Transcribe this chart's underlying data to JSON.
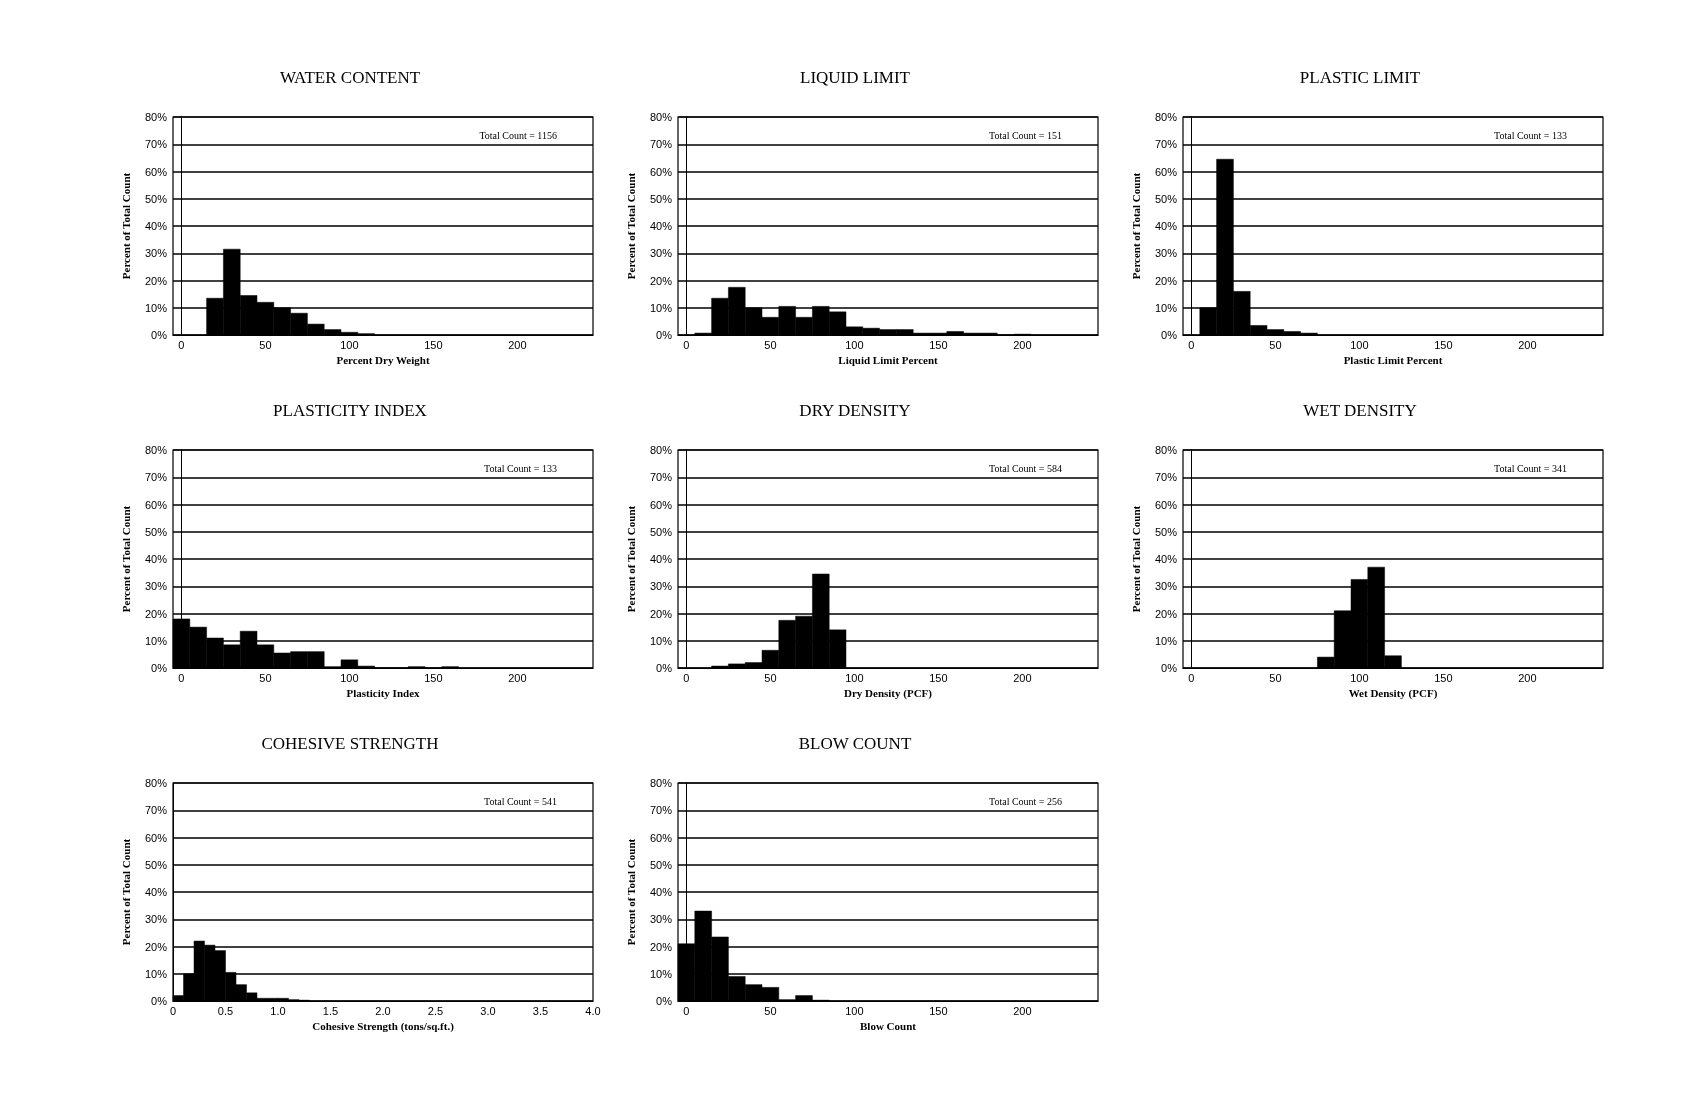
{
  "chart_data": [
    {
      "type": "histogram",
      "title": "WATER CONTENT",
      "xlabel": "Percent Dry Weight",
      "ylabel": "Percent of Total Count",
      "annotations": [
        "Total Count = 1156"
      ],
      "bins": [
        15,
        25,
        35,
        45,
        55,
        65,
        75,
        85,
        95,
        105,
        115
      ],
      "values": [
        13.5,
        31.5,
        14.5,
        12,
        10,
        8,
        4,
        2,
        1,
        0.5
      ],
      "color": "#000000",
      "xlim": [
        -5,
        245
      ],
      "xticks": [
        0,
        50,
        100,
        150,
        200
      ],
      "ylim": [
        0,
        80
      ],
      "yticks": [
        {
          "value": 0,
          "label": "0%"
        },
        {
          "value": 10,
          "label": "10%"
        },
        {
          "value": 20,
          "label": "20%"
        },
        {
          "value": 30,
          "label": "30%"
        },
        {
          "value": 40,
          "label": "40%"
        },
        {
          "value": 50,
          "label": "50%"
        },
        {
          "value": 60,
          "label": "60%"
        },
        {
          "value": 70,
          "label": "70%"
        },
        {
          "value": 80,
          "label": "80%"
        }
      ],
      "grid": "y"
    },
    {
      "type": "histogram",
      "title": "LIQUID LIMIT",
      "xlabel": "Liquid Limit Percent",
      "ylabel": "Percent of Total Count",
      "annotations": [
        "Total Count = 151"
      ],
      "bins": [
        5,
        15,
        25,
        35,
        45,
        55,
        65,
        75,
        85,
        95,
        105,
        115,
        125,
        135,
        145,
        155,
        165,
        175,
        185,
        195,
        205
      ],
      "values": [
        0.7,
        13.5,
        17.5,
        10,
        6.5,
        10.5,
        6.5,
        10.5,
        8.5,
        3,
        2.5,
        2,
        2,
        0.7,
        0.7,
        1.3,
        0.7,
        0.7,
        0,
        0.3
      ],
      "color": "#000000",
      "xlim": [
        -5,
        245
      ],
      "xticks": [
        0,
        50,
        100,
        150,
        200
      ],
      "ylim": [
        0,
        80
      ],
      "yticks": [
        {
          "value": 0,
          "label": "0%"
        },
        {
          "value": 10,
          "label": "10%"
        },
        {
          "value": 20,
          "label": "20%"
        },
        {
          "value": 30,
          "label": "30%"
        },
        {
          "value": 40,
          "label": "40%"
        },
        {
          "value": 50,
          "label": "50%"
        },
        {
          "value": 60,
          "label": "60%"
        },
        {
          "value": 70,
          "label": "70%"
        },
        {
          "value": 80,
          "label": "80%"
        }
      ],
      "grid": "y"
    },
    {
      "type": "histogram",
      "title": "PLASTIC LIMIT",
      "xlabel": "Plastic Limit Percent",
      "ylabel": "Percent of Total Count",
      "annotations": [
        "Total Count = 133"
      ],
      "bins": [
        5,
        15,
        25,
        35,
        45,
        55,
        65,
        75
      ],
      "values": [
        10,
        64.5,
        16,
        3.5,
        2,
        1.3,
        0.7
      ],
      "color": "#000000",
      "xlim": [
        -5,
        245
      ],
      "xticks": [
        0,
        50,
        100,
        150,
        200
      ],
      "ylim": [
        0,
        80
      ],
      "yticks": [
        {
          "value": 0,
          "label": "0%"
        },
        {
          "value": 10,
          "label": "10%"
        },
        {
          "value": 20,
          "label": "20%"
        },
        {
          "value": 30,
          "label": "30%"
        },
        {
          "value": 40,
          "label": "40%"
        },
        {
          "value": 50,
          "label": "50%"
        },
        {
          "value": 60,
          "label": "60%"
        },
        {
          "value": 70,
          "label": "70%"
        },
        {
          "value": 80,
          "label": "80%"
        }
      ],
      "grid": "y"
    },
    {
      "type": "histogram",
      "title": "PLASTICITY INDEX",
      "xlabel": "Plasticity Index",
      "ylabel": "Percent of Total Count",
      "annotations": [
        "Total Count = 133"
      ],
      "bins": [
        -5,
        5,
        15,
        25,
        35,
        45,
        55,
        65,
        75,
        85,
        95,
        105,
        115,
        125,
        135,
        145,
        155,
        165
      ],
      "values": [
        18,
        15,
        11,
        8.5,
        13.5,
        8.5,
        5.5,
        6,
        6,
        0.5,
        3,
        0.7,
        0,
        0,
        0.5,
        0,
        0.5
      ],
      "color": "#000000",
      "xlim": [
        -5,
        245
      ],
      "xticks": [
        0,
        50,
        100,
        150,
        200
      ],
      "ylim": [
        0,
        80
      ],
      "yticks": [
        {
          "value": 0,
          "label": "0%"
        },
        {
          "value": 10,
          "label": "10%"
        },
        {
          "value": 20,
          "label": "20%"
        },
        {
          "value": 30,
          "label": "30%"
        },
        {
          "value": 40,
          "label": "40%"
        },
        {
          "value": 50,
          "label": "50%"
        },
        {
          "value": 60,
          "label": "60%"
        },
        {
          "value": 70,
          "label": "70%"
        },
        {
          "value": 80,
          "label": "80%"
        }
      ],
      "grid": "y"
    },
    {
      "type": "histogram",
      "title": "DRY DENSITY",
      "xlabel": "Dry Density (PCF)",
      "ylabel": "Percent of Total Count",
      "annotations": [
        "Total Count = 584"
      ],
      "bins": [
        15,
        25,
        35,
        45,
        55,
        65,
        75,
        85,
        95
      ],
      "values": [
        0.7,
        1.5,
        2,
        6.5,
        17.5,
        19,
        34.5,
        14
      ],
      "color": "#000000",
      "xlim": [
        -5,
        245
      ],
      "xticks": [
        0,
        50,
        100,
        150,
        200
      ],
      "ylim": [
        0,
        80
      ],
      "yticks": [
        {
          "value": 0,
          "label": "0%"
        },
        {
          "value": 10,
          "label": "10%"
        },
        {
          "value": 20,
          "label": "20%"
        },
        {
          "value": 30,
          "label": "30%"
        },
        {
          "value": 40,
          "label": "40%"
        },
        {
          "value": 50,
          "label": "50%"
        },
        {
          "value": 60,
          "label": "60%"
        },
        {
          "value": 70,
          "label": "70%"
        },
        {
          "value": 80,
          "label": "80%"
        }
      ],
      "grid": "y"
    },
    {
      "type": "histogram",
      "title": "WET DENSITY",
      "xlabel": "Wet Density (PCF)",
      "ylabel": "Percent of Total Count",
      "annotations": [
        "Total Count = 341"
      ],
      "bins": [
        75,
        85,
        95,
        105,
        115,
        125
      ],
      "values": [
        4,
        21,
        32.5,
        37,
        4.5
      ],
      "color": "#000000",
      "xlim": [
        -5,
        245
      ],
      "xticks": [
        0,
        50,
        100,
        150,
        200
      ],
      "ylim": [
        0,
        80
      ],
      "yticks": [
        {
          "value": 0,
          "label": "0%"
        },
        {
          "value": 10,
          "label": "10%"
        },
        {
          "value": 20,
          "label": "20%"
        },
        {
          "value": 30,
          "label": "30%"
        },
        {
          "value": 40,
          "label": "40%"
        },
        {
          "value": 50,
          "label": "50%"
        },
        {
          "value": 60,
          "label": "60%"
        },
        {
          "value": 70,
          "label": "70%"
        },
        {
          "value": 80,
          "label": "80%"
        }
      ],
      "grid": "y"
    },
    {
      "type": "histogram",
      "title": "COHESIVE STRENGTH",
      "xlabel": "Cohesive Strength (tons/sq.ft.)",
      "ylabel": "Percent of Total Count",
      "annotations": [
        "Total Count = 541"
      ],
      "bins": [
        0,
        0.1,
        0.2,
        0.3,
        0.4,
        0.5,
        0.6,
        0.7,
        0.8,
        0.9,
        1.0,
        1.1,
        1.2,
        1.3
      ],
      "values": [
        2,
        10,
        22,
        20.5,
        18.5,
        10.5,
        6,
        3,
        1,
        1,
        1,
        0.5,
        0.3
      ],
      "color": "#000000",
      "xlim": [
        0,
        4
      ],
      "xticks": [
        0,
        0.5,
        {
          "value": 1,
          "label": "1.0"
        },
        1.5,
        {
          "value": 2,
          "label": "2.0"
        },
        2.5,
        {
          "value": 3,
          "label": "3.0"
        },
        3.5,
        {
          "value": 4,
          "label": "4.0"
        }
      ],
      "ylim": [
        0,
        80
      ],
      "yticks": [
        {
          "value": 0,
          "label": "0%"
        },
        {
          "value": 10,
          "label": "10%"
        },
        {
          "value": 20,
          "label": "20%"
        },
        {
          "value": 30,
          "label": "30%"
        },
        {
          "value": 40,
          "label": "40%"
        },
        {
          "value": 50,
          "label": "50%"
        },
        {
          "value": 60,
          "label": "60%"
        },
        {
          "value": 70,
          "label": "70%"
        },
        {
          "value": 80,
          "label": "80%"
        }
      ],
      "grid": "y"
    },
    {
      "type": "histogram",
      "title": "BLOW COUNT",
      "xlabel": "Blow Count",
      "ylabel": "Percent of Total Count",
      "annotations": [
        "Total Count = 256"
      ],
      "bins": [
        -5,
        5,
        15,
        25,
        35,
        45,
        55,
        65,
        75,
        85
      ],
      "values": [
        21,
        33,
        23.5,
        9,
        6,
        5,
        0.5,
        2,
        0.3
      ],
      "color": "#000000",
      "xlim": [
        -5,
        245
      ],
      "xticks": [
        0,
        50,
        100,
        150,
        200
      ],
      "ylim": [
        0,
        80
      ],
      "yticks": [
        {
          "value": 0,
          "label": "0%"
        },
        {
          "value": 10,
          "label": "10%"
        },
        {
          "value": 20,
          "label": "20%"
        },
        {
          "value": 30,
          "label": "30%"
        },
        {
          "value": 40,
          "label": "40%"
        },
        {
          "value": 50,
          "label": "50%"
        },
        {
          "value": 60,
          "label": "60%"
        },
        {
          "value": 70,
          "label": "70%"
        },
        {
          "value": 80,
          "label": "80%"
        }
      ],
      "grid": "y"
    }
  ]
}
